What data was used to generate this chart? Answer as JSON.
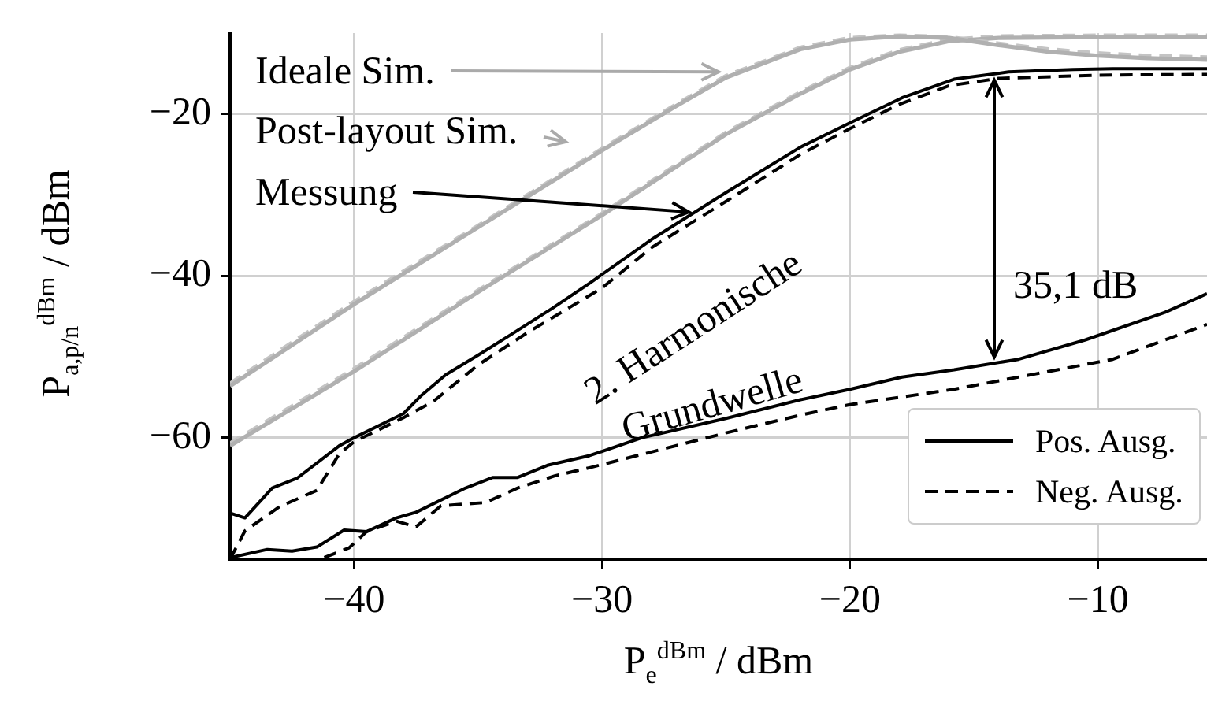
{
  "chart_data": {
    "type": "line",
    "xlabel": "P$_{e}$$^{dBm}$ / dBm",
    "ylabel": "P$_{a,p/n}$$^{dBm}$ / dBm",
    "xlim": [
      -45,
      -5.6
    ],
    "ylim": [
      -75,
      -10
    ],
    "xticks": [
      {
        "value": -40,
        "label": "−40"
      },
      {
        "value": -30,
        "label": "−30"
      },
      {
        "value": -20,
        "label": "−20"
      },
      {
        "value": -10,
        "label": "−10"
      }
    ],
    "yticks": [
      {
        "value": -60,
        "label": "−60"
      },
      {
        "value": -40,
        "label": "−40"
      },
      {
        "value": -20,
        "label": "−20"
      }
    ],
    "grid": true,
    "legend": "bottom right",
    "marker": "none",
    "series": [
      {
        "color": "#b0b0b0",
        "line_style": "solid",
        "x": [
          -45,
          -40,
          -35,
          -30,
          -27,
          -25,
          -22,
          -20,
          -18,
          -16,
          -14,
          -12,
          -10,
          -8,
          -5.6
        ],
        "values": [
          -53.6,
          -43.5,
          -34,
          -24.5,
          -19,
          -15.5,
          -12,
          -10.8,
          -10.4,
          -10.6,
          -11.5,
          -12.3,
          -12.8,
          -13.1,
          -13.3
        ]
      },
      {
        "color": "#c4c4c4",
        "line_style": "dashed",
        "x": [
          -45,
          -40,
          -35,
          -30,
          -27,
          -25,
          -22,
          -20,
          -18,
          -16,
          -14,
          -12,
          -10,
          -8,
          -5.6
        ],
        "values": [
          -53.3,
          -43.2,
          -33.8,
          -24.3,
          -18.8,
          -15.3,
          -11.8,
          -10.6,
          -10.3,
          -10.5,
          -11.3,
          -12,
          -12.5,
          -12.8,
          -13
        ]
      },
      {
        "color": "#b0b0b0",
        "line_style": "solid",
        "x": [
          -45,
          -40,
          -35,
          -30,
          -27,
          -25,
          -22,
          -20,
          -18,
          -16,
          -14,
          -10,
          -5.6
        ],
        "values": [
          -61,
          -51.8,
          -42,
          -32.5,
          -26.5,
          -22.5,
          -17.5,
          -14.5,
          -12.3,
          -11,
          -10.6,
          -10.5,
          -10.5
        ]
      },
      {
        "color": "#c4c4c4",
        "line_style": "dashed",
        "x": [
          -45,
          -40,
          -35,
          -30,
          -27,
          -25,
          -22,
          -20,
          -18,
          -16,
          -14,
          -10,
          -5.6
        ],
        "values": [
          -60.7,
          -51.5,
          -41.8,
          -32.3,
          -26.3,
          -22.3,
          -17.3,
          -14.3,
          -12.1,
          -10.8,
          -10.4,
          -10.3,
          -10.3
        ]
      },
      {
        "name": "Pos. Ausg.",
        "color": "#000000",
        "line_style": "solid",
        "x": [
          -45,
          -44.4,
          -43.3,
          -42.3,
          -40.6,
          -40,
          -38,
          -37.3,
          -36.3,
          -35,
          -33.7,
          -32,
          -30.5,
          -28,
          -25,
          -22,
          -20,
          -17.9,
          -15.8,
          -13.6,
          -11,
          -9.4,
          -5.6
        ],
        "values": [
          -69.3,
          -69.9,
          -66.2,
          -65,
          -61,
          -60,
          -57,
          -54.8,
          -52.2,
          -49.8,
          -47.3,
          -44,
          -40.9,
          -35.5,
          -29.7,
          -24.1,
          -21.1,
          -18,
          -15.7,
          -14.8,
          -14.5,
          -14.4,
          -14.4
        ]
      },
      {
        "name": "Neg. Ausg.",
        "color": "#000000",
        "line_style": "dashed",
        "x": [
          -45,
          -44.4,
          -43,
          -41.5,
          -40.6,
          -40,
          -38,
          -36.8,
          -35,
          -33,
          -30,
          -28,
          -25,
          -22,
          -20,
          -18,
          -16,
          -14,
          -10,
          -5.6
        ],
        "values": [
          -75,
          -71.5,
          -68.5,
          -66.5,
          -62,
          -60.5,
          -57.5,
          -55.5,
          -51,
          -47,
          -41.5,
          -36.5,
          -30.8,
          -25,
          -21.8,
          -18.8,
          -16.5,
          -15.6,
          -15.2,
          -15.1
        ]
      },
      {
        "color": "#000000",
        "line_style": "solid",
        "x": [
          -45,
          -43.5,
          -42.5,
          -41.5,
          -40.4,
          -39.5,
          -38.3,
          -37.5,
          -35.5,
          -34.4,
          -33.4,
          -32.2,
          -30.5,
          -28.4,
          -25,
          -22,
          -20,
          -17.9,
          -15.8,
          -13.2,
          -10.5,
          -7.3,
          -5.6
        ],
        "values": [
          -74.8,
          -73.8,
          -74,
          -73.5,
          -71.4,
          -71.6,
          -69.9,
          -69.2,
          -66.2,
          -64.9,
          -64.9,
          -63.4,
          -62.2,
          -60,
          -57.6,
          -55.3,
          -54,
          -52.5,
          -51.6,
          -50.3,
          -47.9,
          -44.5,
          -42.2
        ]
      },
      {
        "color": "#000000",
        "line_style": "dashed",
        "x": [
          -41.2,
          -40.2,
          -39.5,
          -38.3,
          -37.5,
          -36.5,
          -34.7,
          -33.4,
          -31.9,
          -30.5,
          -25,
          -22,
          -20,
          -15.8,
          -12.5,
          -9.4,
          -5.6
        ],
        "values": [
          -74.8,
          -73.6,
          -71.6,
          -70.3,
          -71,
          -68.4,
          -68,
          -66.2,
          -64.7,
          -63.7,
          -59.4,
          -57.2,
          -55.9,
          -54,
          -52.1,
          -50.3,
          -46
        ]
      }
    ],
    "annotations": [
      {
        "text": "Ideale Sim.",
        "x": -25.3,
        "y": -14.8
      },
      "Post-layout Sim.",
      {
        "text": "Messung",
        "x": -26.5,
        "y": -32.1
      },
      "2. Harmonische",
      "Grundwelle",
      "35,1 dB"
    ]
  }
}
